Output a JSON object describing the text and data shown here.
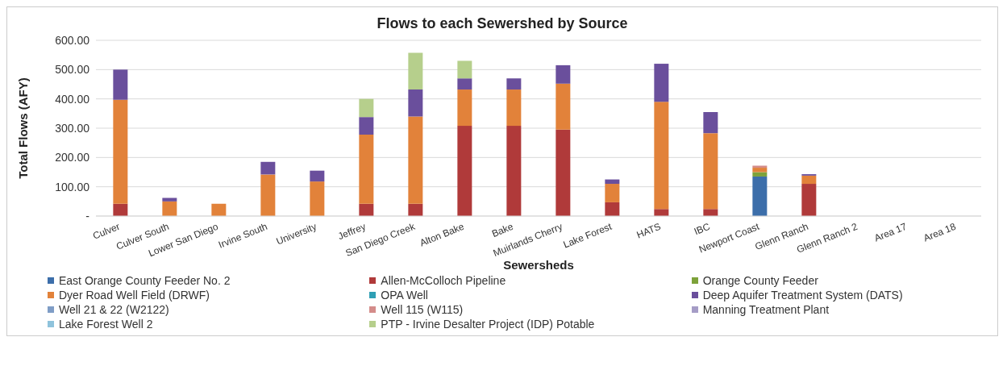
{
  "chart_data": {
    "type": "bar",
    "stacked": true,
    "title": "Flows to each Sewershed by Source",
    "xlabel": "Sewersheds",
    "ylabel": "Total Flows (AFY)",
    "categories": [
      "Culver",
      "Culver South",
      "Lower San Diego",
      "Irvine South",
      "University",
      "Jeffrey",
      "San Diego Creek",
      "Alton Bake",
      "Bake",
      "Muirlands Cherry",
      "Lake Forest",
      "HATS",
      "IBC",
      "Newport Coast",
      "Glenn Ranch",
      "Glenn Ranch 2",
      "Area 17",
      "Area 18"
    ],
    "ylim": [
      0,
      600
    ],
    "yticks": [
      {
        "value": 0,
        "label": "-"
      },
      {
        "value": 100,
        "label": "100.00"
      },
      {
        "value": 200,
        "label": "200.00"
      },
      {
        "value": 300,
        "label": "300.00"
      },
      {
        "value": 400,
        "label": "400.00"
      },
      {
        "value": 500,
        "label": "500.00"
      },
      {
        "value": 600,
        "label": "600.00"
      }
    ],
    "grid": "y",
    "legend": "bottom",
    "series": [
      {
        "name": "East Orange County Feeder No. 2",
        "color": "#3c6eaa",
        "values": [
          null,
          null,
          null,
          null,
          null,
          null,
          null,
          null,
          null,
          null,
          null,
          null,
          null,
          135,
          null,
          null,
          null,
          null
        ]
      },
      {
        "name": "Allen-McColloch Pipeline",
        "color": "#b03a3a",
        "values": [
          42,
          null,
          null,
          null,
          null,
          42,
          42,
          308,
          308,
          295,
          47,
          24,
          24,
          null,
          110,
          null,
          null,
          null
        ]
      },
      {
        "name": "Orange County Feeder",
        "color": "#7da23a",
        "values": [
          null,
          null,
          null,
          null,
          null,
          null,
          null,
          null,
          null,
          null,
          null,
          null,
          null,
          15,
          null,
          null,
          null,
          null
        ]
      },
      {
        "name": "Dyer Road Well Field (DRWF)",
        "color": "#e2823a",
        "values": [
          355,
          50,
          42,
          142,
          118,
          236,
          298,
          124,
          124,
          157,
          63,
          366,
          259,
          15,
          28,
          null,
          null,
          null
        ]
      },
      {
        "name": "OPA Well",
        "color": "#2f9fb4",
        "values": [
          null,
          null,
          null,
          null,
          null,
          null,
          null,
          null,
          null,
          null,
          null,
          null,
          null,
          null,
          null,
          null,
          null,
          null
        ]
      },
      {
        "name": "Deep Aquifer Treatment System (DATS)",
        "color": "#6a4f9c",
        "values": [
          103,
          12,
          null,
          43,
          37,
          60,
          92,
          38,
          38,
          63,
          15,
          130,
          72,
          null,
          5,
          null,
          null,
          null
        ]
      },
      {
        "name": "Well 21 & 22 (W2122)",
        "color": "#7f9dc6",
        "values": [
          null,
          null,
          null,
          null,
          null,
          null,
          null,
          null,
          null,
          null,
          null,
          null,
          null,
          null,
          null,
          null,
          null,
          null
        ]
      },
      {
        "name": "Well 115 (W115)",
        "color": "#d48c8a",
        "values": [
          null,
          null,
          null,
          null,
          null,
          null,
          null,
          null,
          null,
          null,
          null,
          null,
          null,
          7,
          null,
          null,
          null,
          null
        ]
      },
      {
        "name": "Manning Treatment Plant",
        "color": "#a59cc6",
        "values": [
          null,
          null,
          null,
          null,
          null,
          null,
          null,
          null,
          null,
          null,
          null,
          null,
          null,
          null,
          null,
          null,
          null,
          null
        ]
      },
      {
        "name": "Lake Forest Well 2",
        "color": "#8fc3dc",
        "values": [
          null,
          null,
          null,
          null,
          null,
          null,
          null,
          null,
          null,
          null,
          null,
          null,
          null,
          null,
          null,
          null,
          null,
          null
        ]
      },
      {
        "name": "PTP - Irvine Desalter Project (IDP) Potable",
        "color": "#b6cf8c",
        "values": [
          null,
          null,
          null,
          null,
          null,
          62,
          125,
          60,
          null,
          null,
          null,
          null,
          null,
          null,
          null,
          null,
          null,
          null
        ]
      }
    ]
  }
}
